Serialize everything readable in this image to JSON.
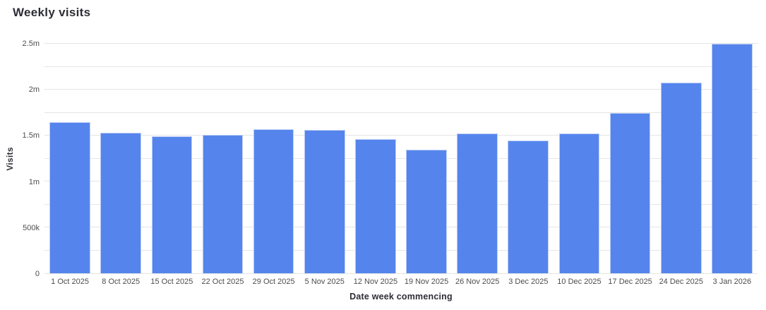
{
  "page": {
    "title": "Weekly visits"
  },
  "chart_data": {
    "type": "bar",
    "title": "Weekly visits",
    "xlabel": "Date week commencing",
    "ylabel": "Visits",
    "categories": [
      "1 Oct 2025",
      "8 Oct 2025",
      "15 Oct 2025",
      "22 Oct 2025",
      "29 Oct 2025",
      "5 Nov 2025",
      "12 Nov 2025",
      "19 Nov 2025",
      "26 Nov 2025",
      "3 Dec 2025",
      "10 Dec 2025",
      "17 Dec 2025",
      "24 Dec 2025",
      "3 Jan 2026"
    ],
    "values": [
      1.65,
      1.53,
      1.49,
      1.51,
      1.57,
      1.56,
      1.46,
      1.35,
      1.52,
      1.45,
      1.52,
      1.75,
      2.08,
      2.5
    ],
    "values_unit": "millions of visits",
    "ylim": [
      0,
      2.5
    ],
    "grid": "horizontal",
    "grid_step": 0.25,
    "y_ticks": [
      {
        "value": 0,
        "label": "0"
      },
      {
        "value": 0.5,
        "label": "500k"
      },
      {
        "value": 1,
        "label": "1m"
      },
      {
        "value": 1.5,
        "label": "1.5m"
      },
      {
        "value": 2,
        "label": "2m"
      },
      {
        "value": 2.5,
        "label": "2.5m"
      }
    ],
    "legend": "none",
    "colors": {
      "bar": "#5585EC",
      "bar_edge": "#bccdf7",
      "gridline": "#e5e5e5",
      "tick_text": "#4d4d4d",
      "label_text": "#2d2d36",
      "background": "#ffffff"
    }
  }
}
